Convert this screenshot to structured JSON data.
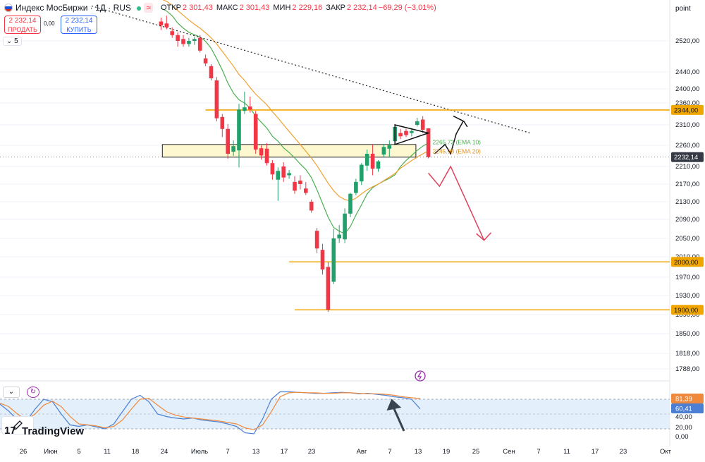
{
  "header": {
    "title": "Индекс МосБиржи · 1Д · RUS",
    "open_label": "ОТКР",
    "open": "2 301,43",
    "high_label": "МАКС",
    "high": "2 301,43",
    "low_label": "МИН",
    "low": "2 229,16",
    "close_label": "ЗАКР",
    "close": "2 232,14",
    "change": "−69,29 (−3,01%)",
    "interval_toggle": "5"
  },
  "trade": {
    "sell_price": "2 232,14",
    "sell_label": "ПРОДАТЬ",
    "buy_price": "2 232,14",
    "buy_label": "КУПИТЬ",
    "spread": "0,00"
  },
  "branding": {
    "logo": "TradingView",
    "logo_prefix": "17"
  },
  "scale_mode": "point",
  "colors": {
    "up": "#22a06b",
    "down": "#f23645",
    "ema10": "#4caf50",
    "ema20": "#f0a030",
    "level": "#f0a500",
    "stoch_k": "#4a7fd4",
    "stoch_d": "#ef8a3c"
  },
  "chart_data": [
    {
      "type": "candlestick",
      "title": "Индекс МосБиржи · 1Д · RUS",
      "y_axis_labels": [
        "2520,00",
        "2440,00",
        "2400,00",
        "2360,00",
        "2310,00",
        "2260,00",
        "2210,00",
        "2170,00",
        "2130,00",
        "2090,00",
        "2050,00",
        "2010,00",
        "1970,00",
        "1930,00",
        "1890,00",
        "1850,00",
        "1818,00",
        "1788,00"
      ],
      "x_axis_labels": [
        "26",
        "Июн",
        "5",
        "11",
        "18",
        "24",
        "Июль",
        "7",
        "13",
        "17",
        "23",
        "Авг",
        "7",
        "13",
        "19",
        "25",
        "Сен",
        "7",
        "11",
        "17",
        "23",
        "Окт"
      ],
      "candles": [
        {
          "o": 2570,
          "h": 2580,
          "l": 2548,
          "c": 2560
        },
        {
          "o": 2565,
          "h": 2585,
          "l": 2550,
          "c": 2555
        },
        {
          "o": 2545,
          "h": 2555,
          "l": 2528,
          "c": 2535
        },
        {
          "o": 2535,
          "h": 2542,
          "l": 2505,
          "c": 2520
        },
        {
          "o": 2525,
          "h": 2535,
          "l": 2505,
          "c": 2512
        },
        {
          "o": 2512,
          "h": 2528,
          "l": 2505,
          "c": 2520
        },
        {
          "o": 2520,
          "h": 2530,
          "l": 2510,
          "c": 2525
        },
        {
          "o": 2528,
          "h": 2535,
          "l": 2490,
          "c": 2495
        },
        {
          "o": 2475,
          "h": 2485,
          "l": 2455,
          "c": 2462
        },
        {
          "o": 2455,
          "h": 2460,
          "l": 2420,
          "c": 2425
        },
        {
          "o": 2420,
          "h": 2428,
          "l": 2318,
          "c": 2325
        },
        {
          "o": 2328,
          "h": 2335,
          "l": 2280,
          "c": 2300
        },
        {
          "o": 2300,
          "h": 2312,
          "l": 2228,
          "c": 2240
        },
        {
          "o": 2245,
          "h": 2272,
          "l": 2235,
          "c": 2258
        },
        {
          "o": 2248,
          "h": 2358,
          "l": 2208,
          "c": 2345
        },
        {
          "o": 2342,
          "h": 2392,
          "l": 2335,
          "c": 2350
        },
        {
          "o": 2352,
          "h": 2378,
          "l": 2338,
          "c": 2345
        },
        {
          "o": 2335,
          "h": 2342,
          "l": 2240,
          "c": 2250
        },
        {
          "o": 2253,
          "h": 2260,
          "l": 2226,
          "c": 2236
        },
        {
          "o": 2252,
          "h": 2265,
          "l": 2212,
          "c": 2218
        },
        {
          "o": 2218,
          "h": 2225,
          "l": 2180,
          "c": 2192
        },
        {
          "o": 2180,
          "h": 2208,
          "l": 2132,
          "c": 2200
        },
        {
          "o": 2210,
          "h": 2220,
          "l": 2175,
          "c": 2185
        },
        {
          "o": 2190,
          "h": 2202,
          "l": 2182,
          "c": 2195
        },
        {
          "o": 2175,
          "h": 2188,
          "l": 2148,
          "c": 2155
        },
        {
          "o": 2178,
          "h": 2190,
          "l": 2158,
          "c": 2170
        },
        {
          "o": 2160,
          "h": 2175,
          "l": 2145,
          "c": 2150
        },
        {
          "o": 2130,
          "h": 2135,
          "l": 2105,
          "c": 2110
        },
        {
          "o": 2066,
          "h": 2072,
          "l": 2018,
          "c": 2028
        },
        {
          "o": 2025,
          "h": 2038,
          "l": 1975,
          "c": 1985
        },
        {
          "o": 1990,
          "h": 2000,
          "l": 1896,
          "c": 1900
        },
        {
          "o": 1960,
          "h": 2070,
          "l": 1955,
          "c": 2050
        },
        {
          "o": 2050,
          "h": 2078,
          "l": 2040,
          "c": 2058
        },
        {
          "o": 2048,
          "h": 2115,
          "l": 2040,
          "c": 2103
        },
        {
          "o": 2103,
          "h": 2150,
          "l": 2095,
          "c": 2148
        },
        {
          "o": 2150,
          "h": 2182,
          "l": 2145,
          "c": 2175
        },
        {
          "o": 2176,
          "h": 2218,
          "l": 2168,
          "c": 2214
        },
        {
          "o": 2212,
          "h": 2250,
          "l": 2200,
          "c": 2240
        },
        {
          "o": 2240,
          "h": 2262,
          "l": 2190,
          "c": 2205
        },
        {
          "o": 2205,
          "h": 2225,
          "l": 2198,
          "c": 2222
        },
        {
          "o": 2238,
          "h": 2262,
          "l": 2232,
          "c": 2256
        },
        {
          "o": 2252,
          "h": 2272,
          "l": 2232,
          "c": 2260
        },
        {
          "o": 2270,
          "h": 2310,
          "l": 2268,
          "c": 2305
        },
        {
          "o": 2290,
          "h": 2300,
          "l": 2275,
          "c": 2282
        },
        {
          "o": 2295,
          "h": 2300,
          "l": 2280,
          "c": 2285
        },
        {
          "o": 2290,
          "h": 2302,
          "l": 2282,
          "c": 2295
        },
        {
          "o": 2310,
          "h": 2326,
          "l": 2306,
          "c": 2318
        },
        {
          "o": 2322,
          "h": 2330,
          "l": 2290,
          "c": 2298
        },
        {
          "o": 2301.43,
          "h": 2301.43,
          "l": 2229.16,
          "c": 2232.14
        }
      ],
      "ema": [
        {
          "name": "EMA 10",
          "last": "2265,73",
          "label": "2265.73 (EMA 10)",
          "values": [
            2604,
            2597,
            2585,
            2566,
            2553,
            2542,
            2536,
            2530,
            2519,
            2501,
            2474,
            2445,
            2414,
            2388,
            2369,
            2360,
            2348,
            2330,
            2316,
            2302,
            2282,
            2270,
            2254,
            2243,
            2230,
            2216,
            2203,
            2185,
            2157,
            2126,
            2095,
            2073,
            2065,
            2060,
            2075,
            2100,
            2123,
            2148,
            2162,
            2170,
            2177,
            2183,
            2191,
            2210,
            2224,
            2236,
            2248,
            2258,
            2265.73
          ]
        },
        {
          "name": "EMA 20",
          "last": "2245,98",
          "label": "2245.98 (EMA 20)",
          "values": [
            2628,
            2622,
            2612,
            2598,
            2586,
            2574,
            2563,
            2553,
            2541,
            2528,
            2512,
            2493,
            2474,
            2455,
            2434,
            2420,
            2403,
            2385,
            2370,
            2356,
            2340,
            2326,
            2310,
            2294,
            2278,
            2262,
            2246,
            2230,
            2212,
            2192,
            2172,
            2155,
            2142,
            2135,
            2132,
            2138,
            2148,
            2157,
            2164,
            2170,
            2178,
            2186,
            2194,
            2206,
            2215,
            2224,
            2232,
            2240,
            2245.98
          ]
        }
      ],
      "levels": [
        {
          "value": 2344.0,
          "label": "2344,00"
        },
        {
          "value": 2000.0,
          "label": "2000,00"
        },
        {
          "value": 1900.0,
          "label": "1900,00"
        }
      ],
      "last_price": {
        "value": 2232.14,
        "label": "2232,14"
      },
      "zone": {
        "from": 2232,
        "to": 2262
      },
      "trendline": {
        "from": {
          "index": 10,
          "y": 2610
        },
        "to": {
          "index": 66,
          "y": 2290
        }
      },
      "annotations": [
        "triangle",
        "black-zigzag-up",
        "red-zigzag-down"
      ]
    },
    {
      "type": "line",
      "title": "Stochastic",
      "y_axis_labels": [
        "40,00",
        "20,00",
        "0,00"
      ],
      "value_labels": [
        "81,39",
        "60,41"
      ],
      "bands": [
        80,
        20
      ],
      "series": [
        {
          "name": "%K",
          "values": [
            70,
            56,
            38,
            35,
            60,
            80,
            75,
            50,
            28,
            25,
            28,
            24,
            20,
            30,
            55,
            80,
            88,
            75,
            50,
            45,
            42,
            40,
            42,
            38,
            36,
            34,
            30,
            25,
            12,
            10,
            40,
            80,
            95,
            95,
            94,
            93,
            92,
            92,
            93,
            94,
            93,
            91,
            92,
            90,
            88,
            85,
            83,
            80,
            60.41
          ]
        },
        {
          "name": "%D",
          "values": [
            72,
            65,
            50,
            38,
            50,
            68,
            76,
            65,
            45,
            30,
            28,
            26,
            22,
            25,
            38,
            60,
            80,
            82,
            68,
            55,
            48,
            44,
            42,
            40,
            38,
            36,
            33,
            30,
            22,
            18,
            28,
            55,
            85,
            93,
            94,
            93,
            93,
            92,
            92,
            93,
            93,
            92,
            91,
            91,
            90,
            88,
            85,
            83,
            81.39
          ]
        }
      ]
    }
  ]
}
